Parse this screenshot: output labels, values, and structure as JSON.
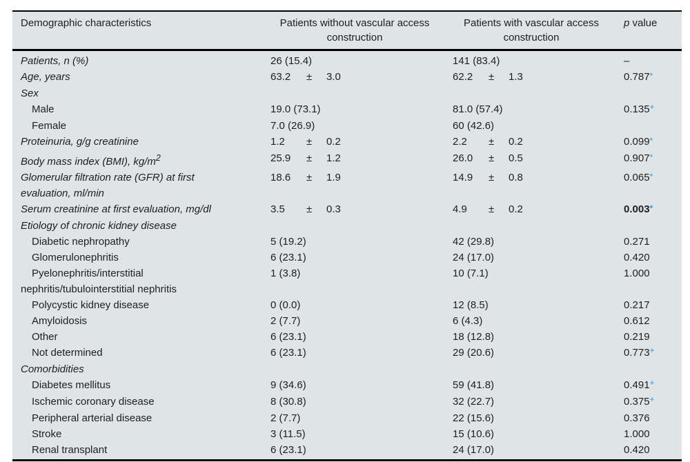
{
  "colors": {
    "table_background": "#dfe4e6",
    "border": "#000000",
    "text": "#1e1e1e",
    "accent_blue_mark": "#2f9cd4"
  },
  "header": {
    "col1": "Demographic characteristics",
    "col2": "Patients without vascular access\nconstruction",
    "col3": "Patients with vascular access\nconstruction",
    "p_italic": "p",
    "p_rest": " value"
  },
  "rows": [
    {
      "label": "Patients, n (%)",
      "style": "italic",
      "c2": {
        "text": "26 (15.4)"
      },
      "c3": {
        "text": "141 (83.4)"
      },
      "p": {
        "text": "–"
      }
    },
    {
      "label": "Age, years",
      "style": "italic",
      "c2": {
        "mean": "63.2",
        "sd": "3.0"
      },
      "c3": {
        "mean": "62.2",
        "sd": "1.3"
      },
      "p": {
        "text": "0.787",
        "mark": "*"
      }
    },
    {
      "label": "Sex",
      "style": "italic"
    },
    {
      "label": "Male",
      "style": "indent",
      "c2": {
        "text": "19.0 (73.1)"
      },
      "c3": {
        "text": "81.0 (57.4)"
      },
      "p": {
        "text": "0.135",
        "mark": "+"
      }
    },
    {
      "label": "Female",
      "style": "indent",
      "c2": {
        "text": "7.0 (26.9)"
      },
      "c3": {
        "text": "60 (42.6)"
      }
    },
    {
      "label": "Proteinuria, g/g creatinine",
      "style": "italic",
      "c2": {
        "mean": "1.2",
        "sd": "0.2"
      },
      "c3": {
        "mean": "2.2",
        "sd": "0.2"
      },
      "p": {
        "text": "0.099",
        "mark": "*"
      }
    },
    {
      "label": "Body mass index (BMI), kg/m",
      "label_sup": "2",
      "style": "italic",
      "c2": {
        "mean": "25.9",
        "sd": "1.2"
      },
      "c3": {
        "mean": "26.0",
        "sd": "0.5"
      },
      "p": {
        "text": "0.907",
        "mark": "*"
      }
    },
    {
      "label": "Glomerular filtration rate (GFR) at first\nevaluation, ml/min",
      "style": "italic",
      "c2": {
        "mean": "18.6",
        "sd": "1.9"
      },
      "c3": {
        "mean": "14.9",
        "sd": "0.8"
      },
      "p": {
        "text": "0.065",
        "mark": "*"
      }
    },
    {
      "label": "Serum creatinine at first evaluation, mg/dl",
      "style": "italic",
      "c2": {
        "mean": "3.5",
        "sd": "0.3"
      },
      "c3": {
        "mean": "4.9",
        "sd": "0.2"
      },
      "p": {
        "text": "0.003",
        "mark": "*",
        "bold": true
      }
    },
    {
      "label": "Etiology of chronic kidney disease",
      "style": "italic"
    },
    {
      "label": "Diabetic nephropathy",
      "style": "indent",
      "c2": {
        "text": "5 (19.2)"
      },
      "c3": {
        "text": "42 (29.8)"
      },
      "p": {
        "text": "0.271"
      }
    },
    {
      "label": "Glomerulonephritis",
      "style": "indent",
      "c2": {
        "text": "6 (23.1)"
      },
      "c3": {
        "text": "24 (17.0)"
      },
      "p": {
        "text": "0.420"
      }
    },
    {
      "label": "Pyelonephritis/interstitial\nnephritis/tubulointerstitial nephritis",
      "style": "indent",
      "c2": {
        "text": "1 (3.8)"
      },
      "c3": {
        "text": "10 (7.1)"
      },
      "p": {
        "text": "1.000"
      }
    },
    {
      "label": "Polycystic kidney disease",
      "style": "indent",
      "c2": {
        "text": "0 (0.0)"
      },
      "c3": {
        "text": "12 (8.5)"
      },
      "p": {
        "text": "0.217"
      }
    },
    {
      "label": "Amyloidosis",
      "style": "indent",
      "c2": {
        "text": "2 (7.7)"
      },
      "c3": {
        "text": "6 (4.3)"
      },
      "p": {
        "text": "0.612"
      }
    },
    {
      "label": "Other",
      "style": "indent",
      "c2": {
        "text": "6 (23.1)"
      },
      "c3": {
        "text": "18 (12.8)"
      },
      "p": {
        "text": "0.219"
      }
    },
    {
      "label": "Not determined",
      "style": "indent",
      "c2": {
        "text": "6 (23.1)"
      },
      "c3": {
        "text": "29 (20.6)"
      },
      "p": {
        "text": "0.773",
        "mark": "+"
      }
    },
    {
      "label": "Comorbidities",
      "style": "italic"
    },
    {
      "label": "Diabetes mellitus",
      "style": "indent",
      "c2": {
        "text": "9 (34.6)"
      },
      "c3": {
        "text": "59 (41.8)"
      },
      "p": {
        "text": "0.491",
        "mark": "+"
      }
    },
    {
      "label": "Ischemic coronary disease",
      "style": "indent",
      "c2": {
        "text": "8 (30.8)"
      },
      "c3": {
        "text": "32 (22.7)"
      },
      "p": {
        "text": "0.375",
        "mark": "+"
      }
    },
    {
      "label": "Peripheral arterial disease",
      "style": "indent",
      "c2": {
        "text": "2 (7.7)"
      },
      "c3": {
        "text": "22 (15.6)"
      },
      "p": {
        "text": "0.376"
      }
    },
    {
      "label": "Stroke",
      "style": "indent",
      "c2": {
        "text": "3 (11.5)"
      },
      "c3": {
        "text": "15 (10.6)"
      },
      "p": {
        "text": "1.000"
      }
    },
    {
      "label": "Renal transplant",
      "style": "indent",
      "c2": {
        "text": "6 (23.1)"
      },
      "c3": {
        "text": "24 (17.0)"
      },
      "p": {
        "text": "0.420"
      }
    }
  ]
}
